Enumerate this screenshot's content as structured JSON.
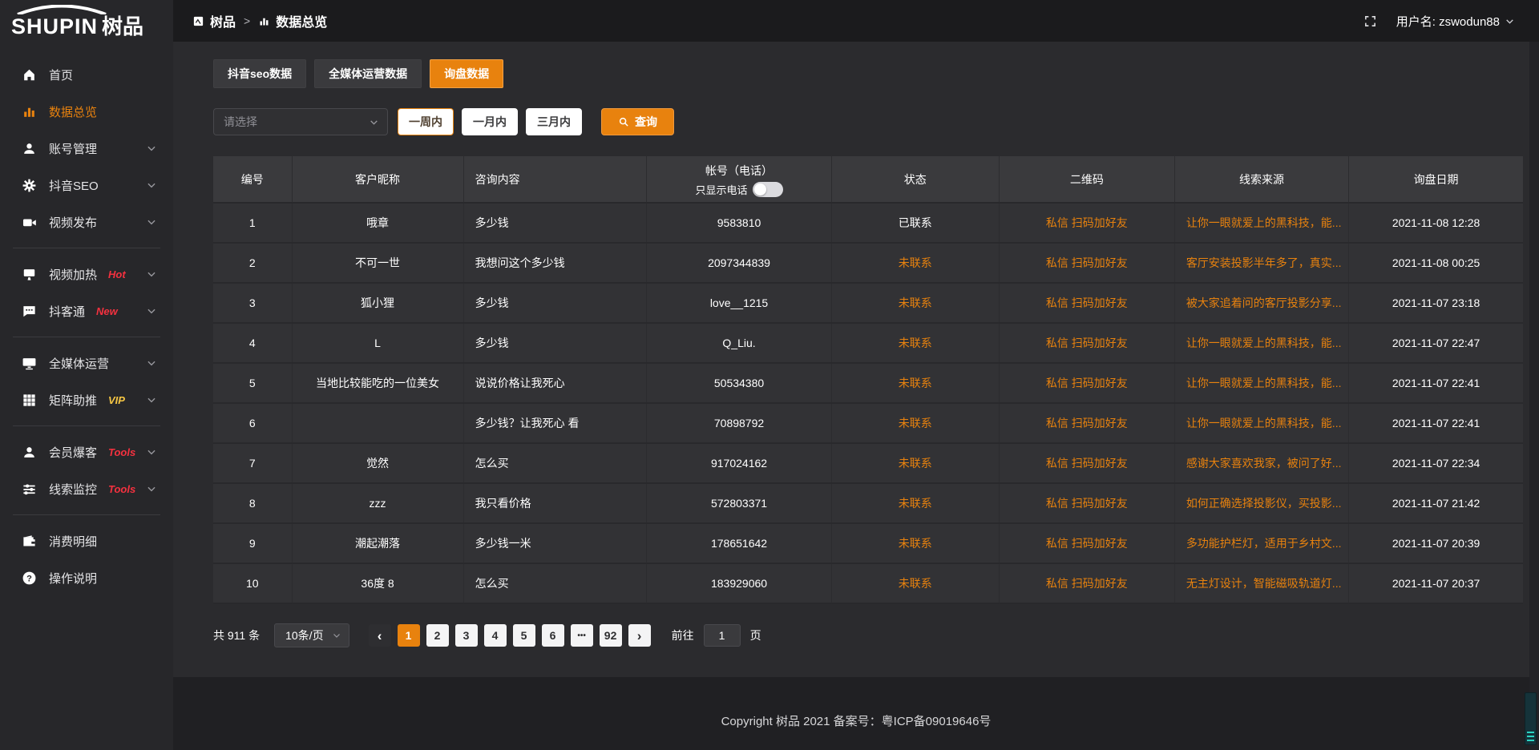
{
  "brand": {
    "logo_text": "SHUPIN",
    "logo_cn": "树品"
  },
  "header": {
    "breadcrumb_app": "树品",
    "separator": ">",
    "breadcrumb_page": "数据总览",
    "user_label": "用户名: zswodun88"
  },
  "sidebar": {
    "items": [
      {
        "id": "home",
        "icon": "home-icon",
        "label": "首页"
      },
      {
        "id": "data-overview",
        "icon": "chart-icon",
        "label": "数据总览",
        "active": true
      },
      {
        "id": "account-mgmt",
        "icon": "user-icon",
        "label": "账号管理",
        "chevron": true
      },
      {
        "id": "douyin-seo",
        "icon": "gear-icon",
        "label": "抖音SEO",
        "chevron": true
      },
      {
        "id": "video-publish",
        "icon": "video-icon",
        "label": "视频发布",
        "chevron": true,
        "divider_after": true
      },
      {
        "id": "video-heat",
        "icon": "display-icon",
        "label": "视频加热",
        "badge": "Hot",
        "badge_color": "red",
        "chevron": true
      },
      {
        "id": "douketong",
        "icon": "chat-icon",
        "label": "抖客通",
        "badge": "New",
        "badge_color": "red",
        "chevron": true,
        "divider_after": true
      },
      {
        "id": "media-ops",
        "icon": "monitor-icon",
        "label": "全媒体运营",
        "chevron": true
      },
      {
        "id": "matrix-boost",
        "icon": "grid-icon",
        "label": "矩阵助推",
        "badge": "VIP",
        "badge_color": "yellow",
        "chevron": true,
        "divider_after": true
      },
      {
        "id": "member-baoke",
        "icon": "person-icon",
        "label": "会员爆客",
        "badge": "Tools",
        "badge_color": "red",
        "chevron": true
      },
      {
        "id": "clue-monitor",
        "icon": "sliders-icon",
        "label": "线索监控",
        "badge": "Tools",
        "badge_color": "red",
        "chevron": true,
        "divider_after": true
      },
      {
        "id": "consume-detail",
        "icon": "wallet-icon",
        "label": "消费明细"
      },
      {
        "id": "operation-guide",
        "icon": "question-icon",
        "label": "操作说明"
      }
    ]
  },
  "tabs": [
    {
      "label": "抖音seo数据"
    },
    {
      "label": "全媒体运营数据"
    },
    {
      "label": "询盘数据",
      "active": true
    }
  ],
  "filters": {
    "select_placeholder": "请选择",
    "ranges": [
      {
        "label": "一周内",
        "active": true
      },
      {
        "label": "一月内"
      },
      {
        "label": "三月内"
      }
    ],
    "search_label": "查询"
  },
  "table": {
    "columns": [
      "编号",
      "客户昵称",
      "咨询内容",
      "帐号（电话）",
      "状态",
      "二维码",
      "线索来源",
      "询盘日期"
    ],
    "phone_toggle_label": "只显示电话",
    "rows": [
      {
        "id": "1",
        "nickname": "哦章",
        "content": "多少钱",
        "account": "9583810",
        "status": "已联系",
        "qr": [
          "私信",
          "扫码加好友"
        ],
        "source": "让你一眼就爱上的黑科技，能...",
        "date": "2021-11-08 12:28"
      },
      {
        "id": "2",
        "nickname": "不可一世",
        "content": "我想问这个多少钱",
        "account": "2097344839",
        "status": "未联系",
        "qr": [
          "私信",
          "扫码加好友"
        ],
        "source": "客厅安装投影半年多了，真实...",
        "date": "2021-11-08 00:25"
      },
      {
        "id": "3",
        "nickname": "狐小狸",
        "content": "多少钱",
        "account": "love__1215",
        "status": "未联系",
        "qr": [
          "私信",
          "扫码加好友"
        ],
        "source": "被大家追着问的客厅投影分享...",
        "date": "2021-11-07 23:18"
      },
      {
        "id": "4",
        "nickname": "L",
        "content": "多少钱",
        "account": "Q_Liu.",
        "status": "未联系",
        "qr": [
          "私信",
          "扫码加好友"
        ],
        "source": "让你一眼就爱上的黑科技，能...",
        "date": "2021-11-07 22:47"
      },
      {
        "id": "5",
        "nickname": "当地比较能吃的一位美女",
        "content": "说说价格让我死心",
        "account": "50534380",
        "status": "未联系",
        "qr": [
          "私信",
          "扫码加好友"
        ],
        "source": "让你一眼就爱上的黑科技，能...",
        "date": "2021-11-07 22:41"
      },
      {
        "id": "6",
        "nickname": "",
        "content": "多少钱？让我死心 看",
        "account": "70898792",
        "status": "未联系",
        "qr": [
          "私信",
          "扫码加好友"
        ],
        "source": "让你一眼就爱上的黑科技，能...",
        "date": "2021-11-07 22:41"
      },
      {
        "id": "7",
        "nickname": "觉然",
        "content": "怎么买",
        "account": "917024162",
        "status": "未联系",
        "qr": [
          "私信",
          "扫码加好友"
        ],
        "source": "感谢大家喜欢我家，被问了好...",
        "date": "2021-11-07 22:34"
      },
      {
        "id": "8",
        "nickname": "zzz",
        "content": "我只看价格",
        "account": "572803371",
        "status": "未联系",
        "qr": [
          "私信",
          "扫码加好友"
        ],
        "source": "如何正确选择投影仪，买投影...",
        "date": "2021-11-07 21:42"
      },
      {
        "id": "9",
        "nickname": "潮起潮落",
        "content": "多少钱一米",
        "account": "178651642",
        "status": "未联系",
        "qr": [
          "私信",
          "扫码加好友"
        ],
        "source": "多功能护栏灯，适用于乡村文...",
        "date": "2021-11-07 20:39"
      },
      {
        "id": "10",
        "nickname": "36度 8",
        "content": "怎么买",
        "account": "183929060",
        "status": "未联系",
        "qr": [
          "私信",
          "扫码加好友"
        ],
        "source": "无主灯设计，智能磁吸轨道灯...",
        "date": "2021-11-07 20:37"
      }
    ]
  },
  "pagination": {
    "total_label": "共 911 条",
    "page_size_label": "10条/页",
    "pages": [
      {
        "label": "1",
        "active": true
      },
      {
        "label": "2"
      },
      {
        "label": "3"
      },
      {
        "label": "4"
      },
      {
        "label": "5"
      },
      {
        "label": "6"
      },
      {
        "label": "•••",
        "ellipsis": true
      },
      {
        "label": "92"
      }
    ],
    "goto_prefix": "前往",
    "goto_value": "1",
    "goto_suffix": "页"
  },
  "footer": {
    "copyright": "Copyright 树品 2021 备案号：粤ICP备09019646号"
  },
  "colors": {
    "accent_orange": "#e8820e",
    "badge_red": "#f5313f",
    "badge_yellow": "#f6c643",
    "status_contacted": "#ffffff",
    "status_uncontacted": "#e8820e"
  }
}
